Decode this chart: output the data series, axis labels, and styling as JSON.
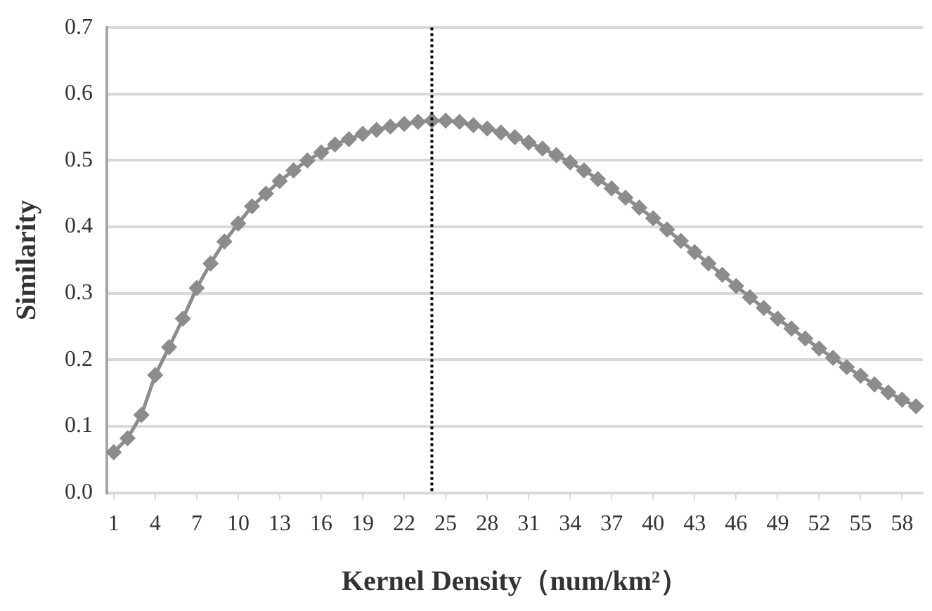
{
  "chart_data": {
    "type": "line",
    "xlabel": "Kernel Density（num/km²）",
    "ylabel": "Similarity",
    "x": [
      1,
      2,
      3,
      4,
      5,
      6,
      7,
      8,
      9,
      10,
      11,
      12,
      13,
      14,
      15,
      16,
      17,
      18,
      19,
      20,
      21,
      22,
      23,
      24,
      25,
      26,
      27,
      28,
      29,
      30,
      31,
      32,
      33,
      34,
      35,
      36,
      37,
      38,
      39,
      40,
      41,
      42,
      43,
      44,
      45,
      46,
      47,
      48,
      49,
      50,
      51,
      52,
      53,
      54,
      55,
      56,
      57,
      58,
      59
    ],
    "xlim": [
      0.5,
      59.5
    ],
    "xticks": [
      1,
      4,
      7,
      10,
      13,
      16,
      19,
      22,
      25,
      28,
      31,
      34,
      37,
      40,
      43,
      46,
      49,
      52,
      55,
      58
    ],
    "series": [
      {
        "color": "#8c8c8c",
        "values": [
          0.061,
          0.082,
          0.117,
          0.177,
          0.219,
          0.262,
          0.308,
          0.345,
          0.378,
          0.405,
          0.431,
          0.45,
          0.469,
          0.485,
          0.5,
          0.512,
          0.524,
          0.532,
          0.54,
          0.546,
          0.551,
          0.555,
          0.558,
          0.56,
          0.56,
          0.558,
          0.553,
          0.548,
          0.542,
          0.535,
          0.527,
          0.518,
          0.508,
          0.497,
          0.485,
          0.472,
          0.458,
          0.444,
          0.429,
          0.413,
          0.396,
          0.379,
          0.362,
          0.345,
          0.328,
          0.311,
          0.294,
          0.278,
          0.262,
          0.247,
          0.232,
          0.217,
          0.203,
          0.189,
          0.176,
          0.163,
          0.151,
          0.14,
          0.13
        ]
      }
    ],
    "ylim": [
      0,
      0.7
    ],
    "yticks": [
      {
        "value": 0,
        "label": "0.0"
      },
      {
        "value": 0.1,
        "label": "0.1"
      },
      {
        "value": 0.2,
        "label": "0.2"
      },
      {
        "value": 0.3,
        "label": "0.3"
      },
      {
        "value": 0.4,
        "label": "0.4"
      },
      {
        "value": 0.5,
        "label": "0.5"
      },
      {
        "value": 0.6,
        "label": "0.6"
      },
      {
        "value": 0.7,
        "label": "0.7"
      }
    ],
    "grid": "y",
    "legend": false,
    "marker": "diamond",
    "line_style": "solid",
    "ref_lines": [
      {
        "axis": "x",
        "value": 24,
        "color": "#000000",
        "line_style": "dotted"
      }
    ]
  }
}
